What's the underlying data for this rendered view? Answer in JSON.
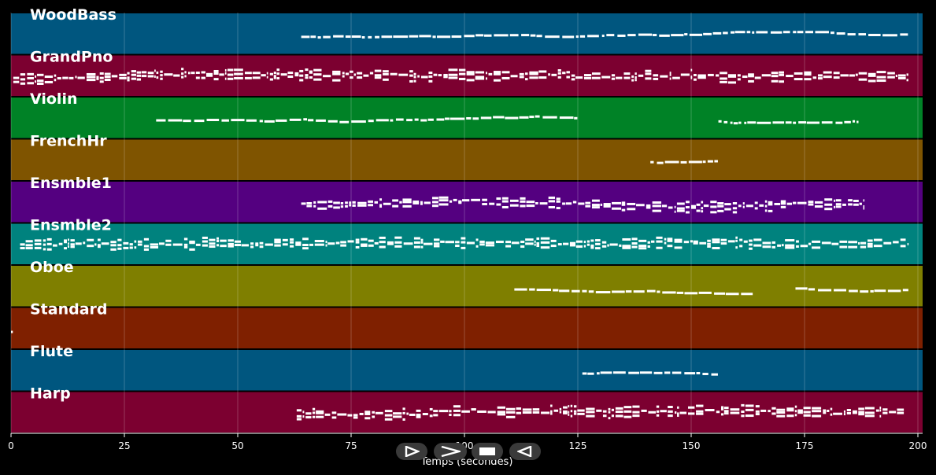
{
  "chart_data": {
    "type": "piano-roll",
    "xlabel": "Temps (secondes)",
    "xlim": [
      0,
      200
    ],
    "x_ticks": [
      0,
      25,
      50,
      75,
      100,
      125,
      150,
      175,
      200
    ],
    "grid": true,
    "tracks": [
      {
        "name": "WoodBass",
        "color": "#00567F",
        "segments": [
          [
            64,
            198
          ]
        ]
      },
      {
        "name": "GrandPno",
        "color": "#7C0030",
        "segments": [
          [
            0.5,
            198
          ]
        ]
      },
      {
        "name": "Violin",
        "color": "#008226",
        "segments": [
          [
            32,
            125
          ],
          [
            156,
            187
          ]
        ]
      },
      {
        "name": "FrenchHr",
        "color": "#7F5400",
        "segments": [
          [
            141,
            156
          ]
        ]
      },
      {
        "name": "Ensmble1",
        "color": "#540080",
        "segments": [
          [
            64,
            188
          ]
        ]
      },
      {
        "name": "Ensmble2",
        "color": "#00827E",
        "segments": [
          [
            2,
            198
          ]
        ]
      },
      {
        "name": "Oboe",
        "color": "#7F7F00",
        "segments": [
          [
            111,
            164
          ],
          [
            173,
            198
          ]
        ]
      },
      {
        "name": "Standard",
        "color": "#7F2000",
        "segments": [
          [
            0,
            0.5
          ]
        ]
      },
      {
        "name": "Flute",
        "color": "#00567F",
        "segments": [
          [
            126,
            156
          ]
        ]
      },
      {
        "name": "Harp",
        "color": "#7C0030",
        "segments": [
          [
            63,
            197
          ]
        ]
      }
    ]
  },
  "controls": [
    {
      "name": "play-button",
      "icon": "play-icon"
    },
    {
      "name": "fast-forward-button",
      "icon": "fast-forward-icon"
    },
    {
      "name": "stop-button",
      "icon": "stop-icon"
    },
    {
      "name": "rewind-button",
      "icon": "rewind-icon"
    }
  ]
}
